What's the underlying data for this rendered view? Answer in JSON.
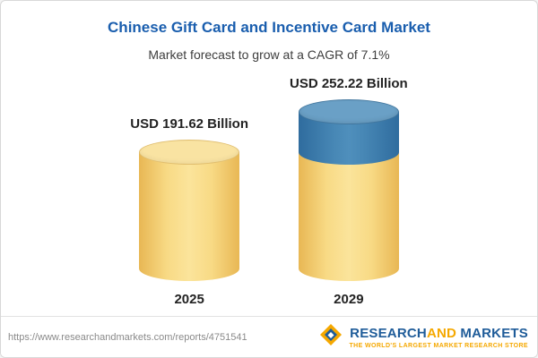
{
  "header": {
    "title": "Chinese Gift Card and Incentive Card Market",
    "subtitle": "Market forecast to grow at a CAGR of 7.1%"
  },
  "chart_data": {
    "type": "bar",
    "variant": "3d-cylinder",
    "categories": [
      "2025",
      "2029"
    ],
    "values": [
      191.62,
      252.22
    ],
    "value_labels": [
      "USD 191.62 Billion",
      "USD 252.22 Billion"
    ],
    "unit": "USD Billion",
    "title": "Chinese Gift Card and Incentive Card Market",
    "subtitle": "Market forecast to grow at a CAGR of 7.1%",
    "cagr": "7.1%",
    "xlabel": "",
    "ylabel": "",
    "ylim": [
      0,
      260
    ],
    "grid": false,
    "legend": false,
    "growth_segment": {
      "bar": "2029",
      "base_value": 191.62,
      "growth_value": 60.6
    },
    "colors": {
      "bar_base_body": "#F8DA85",
      "bar_base_edge": "#E8B754",
      "bar_base_top": "#F9E3A2",
      "bar_growth_body": "#4787B5",
      "bar_growth_top": "#6AA0C6",
      "title_blue": "#1A5EAE"
    }
  },
  "footer": {
    "url": "https://www.researchandmarkets.com/reports/4751541",
    "logo": {
      "research": "RESEARCH",
      "and": "AND",
      "markets": "MARKETS",
      "tagline": "THE WORLD'S LARGEST MARKET RESEARCH STORE",
      "brand_blue": "#1F5C99",
      "brand_orange": "#F5A800"
    }
  }
}
